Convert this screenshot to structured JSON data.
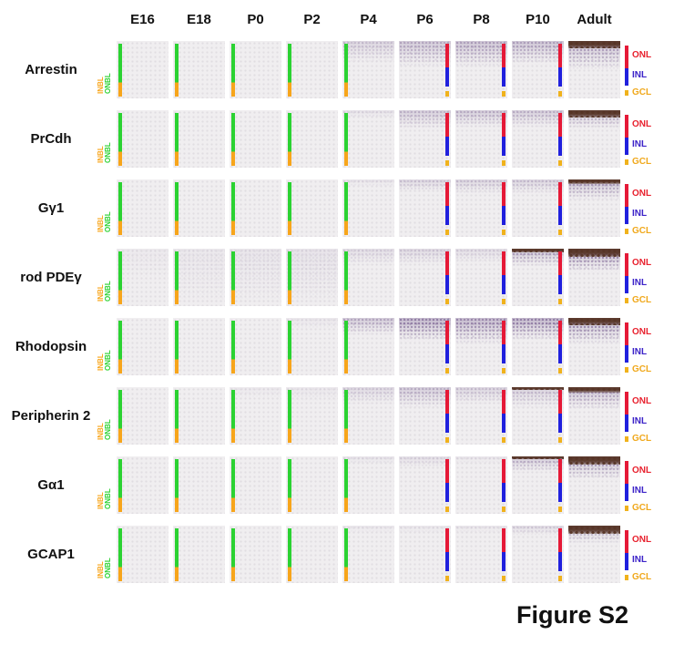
{
  "figure": {
    "caption": "Figure S2"
  },
  "columns": [
    "E16",
    "E18",
    "P0",
    "P2",
    "P4",
    "P6",
    "P8",
    "P10",
    "Adult"
  ],
  "left_axis": {
    "top": "ONBL",
    "bottom": "INBL"
  },
  "right_axis": [
    "ONL",
    "INL",
    "GCL"
  ],
  "colors": {
    "green": "#2bd232",
    "orange": "#f7a51b",
    "red": "#e51937",
    "blue": "#2020dd",
    "gcl": "#f0b21c",
    "onl_text": "#e8212e",
    "inl_text": "#3b22c8",
    "gcl_text": "#f0a81c",
    "panel_bg": "#f0eef0",
    "stain_rgb": "104,76,132",
    "crust_rgb": "86,52,38"
  },
  "rows": [
    {
      "label": "Arrestin",
      "cells": [
        [
          0,
          0,
          0
        ],
        [
          0,
          0,
          0
        ],
        [
          0,
          0,
          0
        ],
        [
          0,
          0,
          0
        ],
        [
          0.3,
          38,
          0
        ],
        [
          0.45,
          46,
          0
        ],
        [
          0.5,
          46,
          0
        ],
        [
          0.5,
          42,
          0
        ],
        [
          0.55,
          50,
          12
        ]
      ]
    },
    {
      "label": "PrCdh",
      "cells": [
        [
          0,
          0,
          0
        ],
        [
          0,
          0,
          0
        ],
        [
          0,
          0,
          0
        ],
        [
          0,
          0,
          0
        ],
        [
          0.15,
          14,
          0
        ],
        [
          0.38,
          34,
          0
        ],
        [
          0.42,
          30,
          0
        ],
        [
          0.4,
          30,
          0
        ],
        [
          0.5,
          34,
          12
        ]
      ]
    },
    {
      "label": "Gγ1",
      "cells": [
        [
          0,
          0,
          0
        ],
        [
          0,
          0,
          0
        ],
        [
          0,
          0,
          0
        ],
        [
          0,
          0,
          0
        ],
        [
          0.12,
          12,
          0
        ],
        [
          0.28,
          22,
          0
        ],
        [
          0.3,
          25,
          0
        ],
        [
          0.32,
          25,
          0
        ],
        [
          0.55,
          36,
          8
        ]
      ]
    },
    {
      "label": "rod PDEγ",
      "cells": [
        [
          0.05,
          60,
          0
        ],
        [
          0.08,
          100,
          0
        ],
        [
          0.1,
          100,
          0
        ],
        [
          0.12,
          100,
          0
        ],
        [
          0.2,
          30,
          0
        ],
        [
          0.25,
          28,
          0
        ],
        [
          0.2,
          25,
          0
        ],
        [
          0.55,
          32,
          6
        ],
        [
          0.75,
          42,
          14
        ]
      ]
    },
    {
      "label": "Rhodopsin",
      "cells": [
        [
          0,
          0,
          0
        ],
        [
          0,
          0,
          0
        ],
        [
          0,
          0,
          0
        ],
        [
          0.08,
          20,
          0
        ],
        [
          0.45,
          30,
          0
        ],
        [
          0.7,
          42,
          0
        ],
        [
          0.65,
          46,
          0
        ],
        [
          0.7,
          40,
          0
        ],
        [
          0.7,
          46,
          12
        ]
      ]
    },
    {
      "label": "Peripherin 2",
      "cells": [
        [
          0,
          0,
          0
        ],
        [
          0,
          0,
          0
        ],
        [
          0.06,
          20,
          0
        ],
        [
          0.08,
          25,
          0
        ],
        [
          0.25,
          30,
          0
        ],
        [
          0.4,
          36,
          0
        ],
        [
          0.3,
          30,
          0
        ],
        [
          0.35,
          36,
          4
        ],
        [
          0.55,
          40,
          10
        ]
      ]
    },
    {
      "label": "Gα1",
      "cells": [
        [
          0,
          0,
          0
        ],
        [
          0,
          0,
          0
        ],
        [
          0,
          0,
          0
        ],
        [
          0,
          0,
          0
        ],
        [
          0.12,
          15,
          0
        ],
        [
          0.18,
          20,
          0
        ],
        [
          0.1,
          12,
          0
        ],
        [
          0.45,
          28,
          5
        ],
        [
          0.6,
          42,
          14
        ]
      ]
    },
    {
      "label": "GCAP1",
      "cells": [
        [
          0,
          0,
          0
        ],
        [
          0,
          0,
          0
        ],
        [
          0,
          0,
          0
        ],
        [
          0,
          0,
          0
        ],
        [
          0.08,
          12,
          0
        ],
        [
          0.08,
          15,
          0
        ],
        [
          0.1,
          12,
          0
        ],
        [
          0.22,
          18,
          0
        ],
        [
          0.45,
          32,
          15
        ]
      ]
    }
  ]
}
